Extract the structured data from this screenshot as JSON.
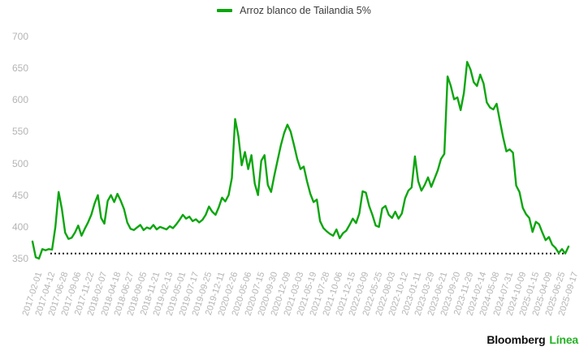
{
  "legend": {
    "label": "Arroz blanco de Tailandia 5%"
  },
  "branding": {
    "bloomberg": "Bloomberg",
    "linea": "Línea"
  },
  "colors": {
    "line": "#0CA60E",
    "logo_green": "#23b123",
    "axis_label": "#b4b4b4",
    "legend_text": "#3c3c3c",
    "reference_line": "#1a1a1a",
    "background": "#ffffff"
  },
  "chart_data": {
    "type": "line",
    "title": "",
    "xlabel": "",
    "ylabel": "",
    "grid": false,
    "legend_position": "top-center",
    "ylim": [
      350,
      700
    ],
    "y_ticks": [
      700,
      650,
      600,
      550,
      500,
      450,
      400,
      350
    ],
    "x_tick_labels": [
      "2017-02-01",
      "2017-04-12",
      "2017-06-28",
      "2017-09-06",
      "2017-11-22",
      "2018-02-07",
      "2018-04-18",
      "2018-06-27",
      "2018-09-05",
      "2018-11-21",
      "2019-02-13",
      "2019-05-01",
      "2019-07-17",
      "2019-09-25",
      "2019-12-11",
      "2020-02-26",
      "2020-05-06",
      "2020-07-15",
      "2020-09-30",
      "2020-12-09",
      "2021-03-03",
      "2021-05-19",
      "2021-07-28",
      "2021-10-06",
      "2021-12-15",
      "2022-03-09",
      "2022-05-25",
      "2022-08-03",
      "2022-10-12",
      "2023-01-11",
      "2023-03-29",
      "2023-06-21",
      "2023-09-20",
      "2023-11-29",
      "2024-02-14",
      "2024-05-08",
      "2024-07-31",
      "2024-10-09",
      "2025-01-15",
      "2025-04-09",
      "2025-06-25",
      "2025-09-17"
    ],
    "reference_line": {
      "value": 358,
      "style": "dotted",
      "color": "#1a1a1a"
    },
    "series": [
      {
        "name": "Arroz blanco de Tailandia 5%",
        "color": "#0CA60E",
        "sampling": "4 evenly spaced points per x-tick interval, from 2017-02-01 to 2025-09-17; values estimated from gridlines (USD/ton)",
        "values": [
          377,
          352,
          350,
          365,
          363,
          365,
          364,
          400,
          455,
          428,
          391,
          381,
          383,
          391,
          402,
          386,
          397,
          407,
          419,
          437,
          450,
          414,
          405,
          441,
          450,
          439,
          452,
          441,
          428,
          407,
          397,
          395,
          399,
          403,
          395,
          399,
          397,
          403,
          396,
          400,
          398,
          396,
          401,
          398,
          404,
          411,
          419,
          413,
          416,
          409,
          412,
          407,
          411,
          419,
          432,
          424,
          419,
          431,
          446,
          440,
          450,
          477,
          570,
          543,
          497,
          518,
          491,
          513,
          468,
          450,
          504,
          513,
          466,
          455,
          481,
          505,
          529,
          548,
          561,
          550,
          529,
          507,
          491,
          495,
          472,
          452,
          439,
          443,
          409,
          398,
          393,
          389,
          386,
          396,
          382,
          390,
          394,
          403,
          413,
          406,
          421,
          456,
          454,
          433,
          419,
          402,
          400,
          429,
          433,
          419,
          414,
          424,
          413,
          421,
          445,
          457,
          462,
          511,
          472,
          457,
          466,
          478,
          463,
          476,
          489,
          507,
          515,
          637,
          622,
          601,
          604,
          584,
          611,
          660,
          648,
          628,
          622,
          640,
          626,
          596,
          588,
          585,
          594,
          567,
          541,
          519,
          522,
          517,
          465,
          455,
          430,
          420,
          414,
          392,
          408,
          404,
          391,
          379,
          384,
          372,
          367,
          359,
          365,
          358,
          369
        ]
      }
    ]
  }
}
